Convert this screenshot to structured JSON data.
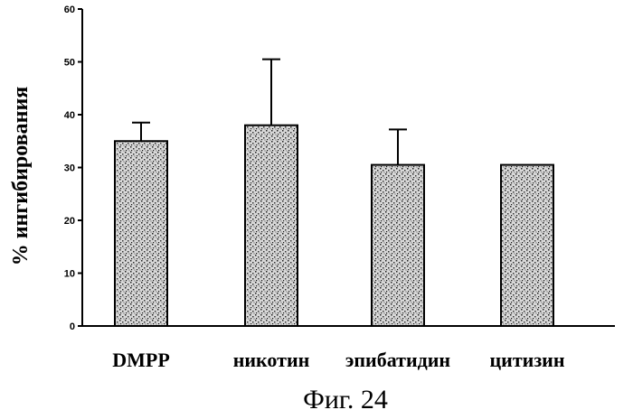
{
  "chart_data": {
    "type": "bar",
    "categories": [
      "DMPP",
      "никотин",
      "эпибатидин",
      "цитизин"
    ],
    "values": [
      35,
      38,
      30.5,
      30.5
    ],
    "error_up": [
      3.5,
      12.5,
      6.7,
      0
    ],
    "ylabel": "% ингибирования",
    "xlabel": "",
    "ylim": [
      0,
      60
    ],
    "yticks": [
      0,
      10,
      20,
      30,
      40,
      50,
      60
    ],
    "grid": false,
    "bar_fill": "stippled-gray"
  },
  "caption": "Фиг. 24"
}
